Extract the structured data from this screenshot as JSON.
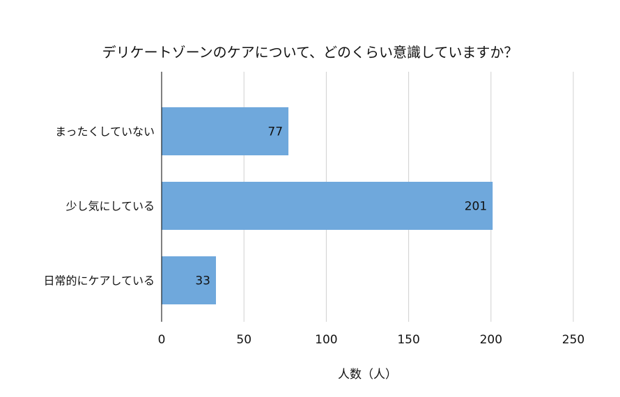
{
  "chart_data": {
    "type": "bar",
    "orientation": "horizontal",
    "title": "デリケートゾーンのケアについて、どのくらい意識していますか？",
    "xlabel": "人数（人）",
    "ylabel": "",
    "categories": [
      "まったくしていない",
      "少し気にしている",
      "日常的にケアしている"
    ],
    "values": [
      77,
      201,
      33
    ],
    "data_labels": [
      "77",
      "201",
      "33"
    ],
    "xlim": [
      0,
      250
    ],
    "x_ticks": [
      0,
      50,
      100,
      150,
      200,
      250
    ],
    "x_tick_labels": [
      "0",
      "50",
      "100",
      "150",
      "200",
      "250"
    ],
    "grid": "vertical",
    "legend": "none",
    "colors": {
      "bar": "#6fa8dc",
      "grid": "#d0d0d0",
      "axis": "#000000",
      "text": "#111111"
    }
  }
}
